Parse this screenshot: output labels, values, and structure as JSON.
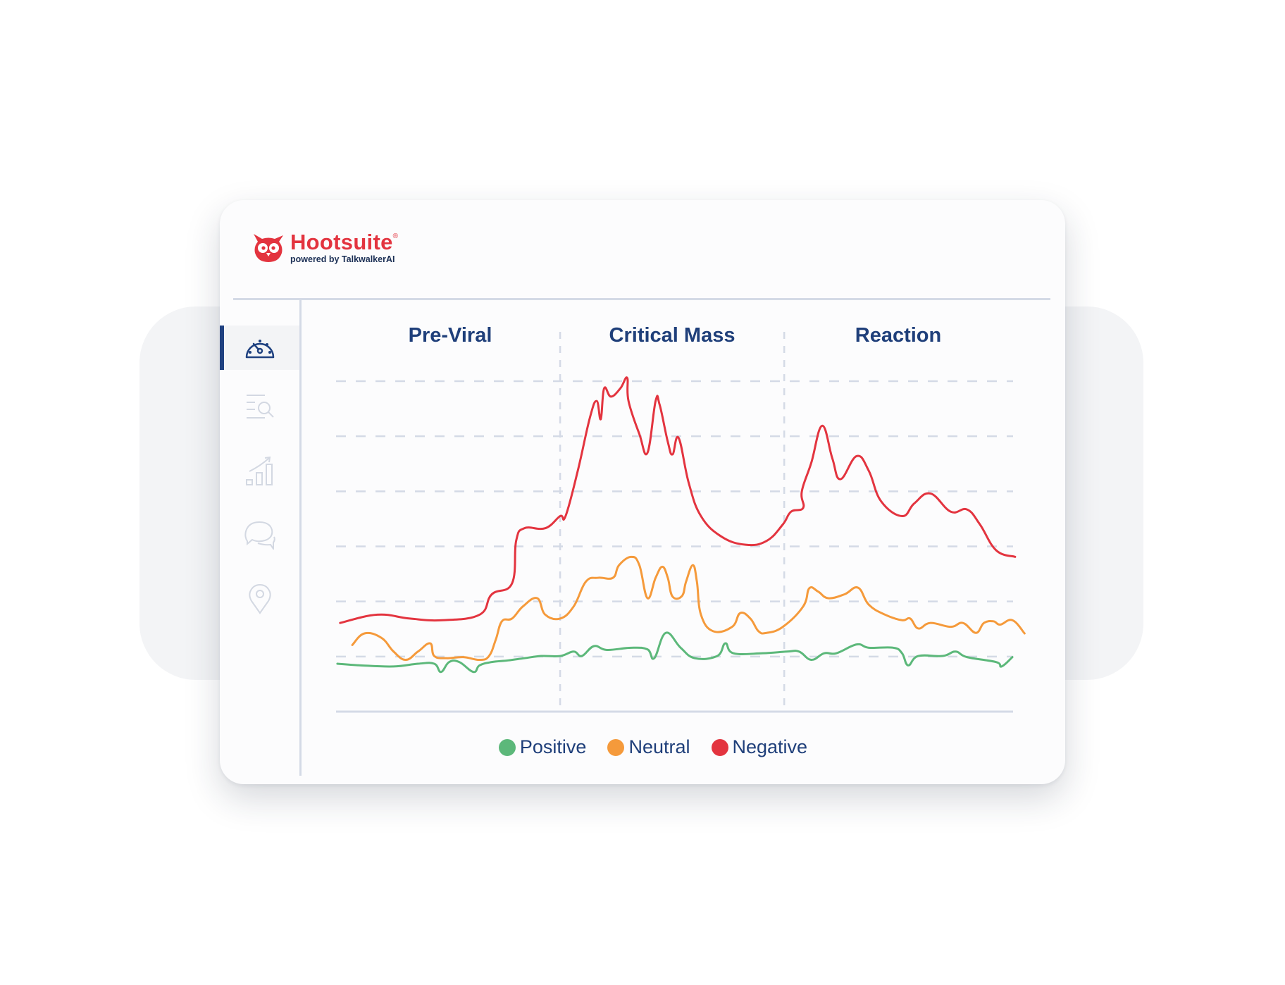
{
  "brand": {
    "name": "Hootsuite",
    "registered": "®",
    "tagline": "powered by TalkwalkerAI",
    "color": "#e3343f"
  },
  "sidebar": {
    "items": [
      {
        "icon": "dashboard-gauge-icon",
        "active": true
      },
      {
        "icon": "search-list-icon",
        "active": false
      },
      {
        "icon": "bar-chart-growth-icon",
        "active": false
      },
      {
        "icon": "chat-bubbles-icon",
        "active": false
      },
      {
        "icon": "location-pin-icon",
        "active": false
      }
    ],
    "active_color": "#1f4180",
    "inactive_color": "#d3d8e2"
  },
  "chart_data": {
    "type": "line",
    "phases": [
      {
        "label": "Pre-Viral",
        "start": 0,
        "end": 33.1
      },
      {
        "label": "Critical Mass",
        "start": 33.1,
        "end": 66.2
      },
      {
        "label": "Reaction",
        "start": 66.2,
        "end": 100
      }
    ],
    "xlim": [
      0,
      100
    ],
    "ylim": [
      0,
      6
    ],
    "grid": true,
    "legend_position": "bottom",
    "series": [
      {
        "name": "Positive",
        "color": "#5cb87a",
        "points": [
          [
            0.2,
            0.87
          ],
          [
            3.6,
            0.84
          ],
          [
            8.5,
            0.82
          ],
          [
            12.1,
            0.87
          ],
          [
            14.5,
            0.87
          ],
          [
            15.5,
            0.72
          ],
          [
            16.7,
            0.9
          ],
          [
            18.2,
            0.9
          ],
          [
            20.3,
            0.72
          ],
          [
            21.2,
            0.84
          ],
          [
            23.0,
            0.9
          ],
          [
            25.4,
            0.93
          ],
          [
            27.8,
            0.97
          ],
          [
            30.3,
            1.01
          ],
          [
            33.1,
            1.01
          ],
          [
            35.1,
            1.09
          ],
          [
            36.3,
            1.01
          ],
          [
            38.1,
            1.19
          ],
          [
            40.0,
            1.12
          ],
          [
            43.6,
            1.16
          ],
          [
            46.0,
            1.13
          ],
          [
            47.0,
            0.97
          ],
          [
            48.7,
            1.43
          ],
          [
            50.9,
            1.16
          ],
          [
            53.0,
            0.97
          ],
          [
            56.3,
            1.01
          ],
          [
            57.5,
            1.24
          ],
          [
            58.7,
            1.06
          ],
          [
            63.0,
            1.06
          ],
          [
            66.6,
            1.09
          ],
          [
            68.4,
            1.09
          ],
          [
            70.2,
            0.94
          ],
          [
            72.1,
            1.06
          ],
          [
            73.9,
            1.06
          ],
          [
            76.9,
            1.22
          ],
          [
            78.7,
            1.16
          ],
          [
            82.3,
            1.16
          ],
          [
            83.6,
            1.06
          ],
          [
            84.5,
            0.84
          ],
          [
            86.0,
            1.01
          ],
          [
            89.6,
            1.01
          ],
          [
            91.5,
            1.09
          ],
          [
            93.2,
            0.99
          ],
          [
            97.5,
            0.9
          ],
          [
            98.3,
            0.82
          ],
          [
            99.9,
            0.99
          ]
        ]
      },
      {
        "name": "Neutral",
        "color": "#f59a3b",
        "points": [
          [
            2.4,
            1.21
          ],
          [
            4.2,
            1.42
          ],
          [
            6.7,
            1.34
          ],
          [
            8.5,
            1.09
          ],
          [
            10.3,
            0.94
          ],
          [
            12.1,
            1.09
          ],
          [
            13.9,
            1.24
          ],
          [
            14.5,
            1.01
          ],
          [
            16.3,
            0.97
          ],
          [
            18.8,
            0.99
          ],
          [
            21.2,
            0.94
          ],
          [
            22.6,
            1.01
          ],
          [
            23.6,
            1.31
          ],
          [
            24.5,
            1.64
          ],
          [
            26.0,
            1.69
          ],
          [
            27.6,
            1.91
          ],
          [
            29.7,
            2.06
          ],
          [
            30.9,
            1.76
          ],
          [
            33.1,
            1.69
          ],
          [
            35.1,
            1.91
          ],
          [
            36.9,
            2.36
          ],
          [
            38.7,
            2.43
          ],
          [
            40.9,
            2.43
          ],
          [
            41.8,
            2.66
          ],
          [
            43.6,
            2.81
          ],
          [
            44.8,
            2.66
          ],
          [
            46.0,
            2.06
          ],
          [
            47.2,
            2.43
          ],
          [
            48.2,
            2.63
          ],
          [
            49.0,
            2.43
          ],
          [
            49.7,
            2.09
          ],
          [
            51.1,
            2.1
          ],
          [
            51.7,
            2.36
          ],
          [
            52.7,
            2.66
          ],
          [
            53.3,
            2.36
          ],
          [
            53.9,
            1.76
          ],
          [
            55.7,
            1.46
          ],
          [
            58.5,
            1.54
          ],
          [
            59.7,
            1.79
          ],
          [
            61.2,
            1.69
          ],
          [
            62.4,
            1.46
          ],
          [
            63.6,
            1.43
          ],
          [
            66.0,
            1.54
          ],
          [
            69.0,
            1.91
          ],
          [
            69.9,
            2.24
          ],
          [
            71.2,
            2.18
          ],
          [
            72.7,
            2.06
          ],
          [
            75.1,
            2.13
          ],
          [
            77.1,
            2.25
          ],
          [
            78.7,
            1.94
          ],
          [
            81.1,
            1.76
          ],
          [
            83.6,
            1.66
          ],
          [
            84.8,
            1.69
          ],
          [
            86.0,
            1.51
          ],
          [
            87.8,
            1.61
          ],
          [
            90.8,
            1.54
          ],
          [
            92.6,
            1.61
          ],
          [
            94.5,
            1.43
          ],
          [
            95.7,
            1.61
          ],
          [
            97.1,
            1.64
          ],
          [
            98.1,
            1.58
          ],
          [
            99.9,
            1.66
          ],
          [
            101.7,
            1.42
          ]
        ]
      },
      {
        "name": "Negative",
        "color": "#e3343f",
        "points": [
          [
            0.6,
            1.61
          ],
          [
            6.1,
            1.76
          ],
          [
            10.9,
            1.69
          ],
          [
            15.7,
            1.66
          ],
          [
            21.2,
            1.76
          ],
          [
            23.0,
            2.13
          ],
          [
            26.0,
            2.33
          ],
          [
            26.6,
            3.1
          ],
          [
            27.8,
            3.33
          ],
          [
            30.9,
            3.33
          ],
          [
            33.1,
            3.55
          ],
          [
            33.9,
            3.55
          ],
          [
            35.7,
            4.37
          ],
          [
            37.5,
            5.34
          ],
          [
            38.5,
            5.64
          ],
          [
            39.1,
            5.31
          ],
          [
            39.6,
            5.87
          ],
          [
            40.6,
            5.72
          ],
          [
            42.0,
            5.87
          ],
          [
            43.0,
            6.06
          ],
          [
            43.2,
            5.64
          ],
          [
            44.8,
            5.04
          ],
          [
            46.0,
            4.7
          ],
          [
            47.2,
            5.64
          ],
          [
            47.8,
            5.57
          ],
          [
            49.0,
            4.9
          ],
          [
            49.7,
            4.67
          ],
          [
            50.6,
            4.97
          ],
          [
            52.1,
            4.15
          ],
          [
            53.9,
            3.55
          ],
          [
            56.9,
            3.18
          ],
          [
            60.5,
            3.03
          ],
          [
            63.6,
            3.1
          ],
          [
            66.0,
            3.4
          ],
          [
            67.2,
            3.63
          ],
          [
            69.0,
            3.7
          ],
          [
            68.8,
            4.0
          ],
          [
            70.2,
            4.52
          ],
          [
            71.8,
            5.19
          ],
          [
            73.3,
            4.6
          ],
          [
            74.5,
            4.22
          ],
          [
            76.9,
            4.64
          ],
          [
            78.7,
            4.37
          ],
          [
            80.5,
            3.82
          ],
          [
            83.6,
            3.55
          ],
          [
            85.4,
            3.78
          ],
          [
            87.8,
            3.96
          ],
          [
            90.8,
            3.63
          ],
          [
            93.2,
            3.67
          ],
          [
            95.1,
            3.4
          ],
          [
            97.5,
            2.93
          ],
          [
            100.3,
            2.81
          ]
        ]
      }
    ]
  }
}
